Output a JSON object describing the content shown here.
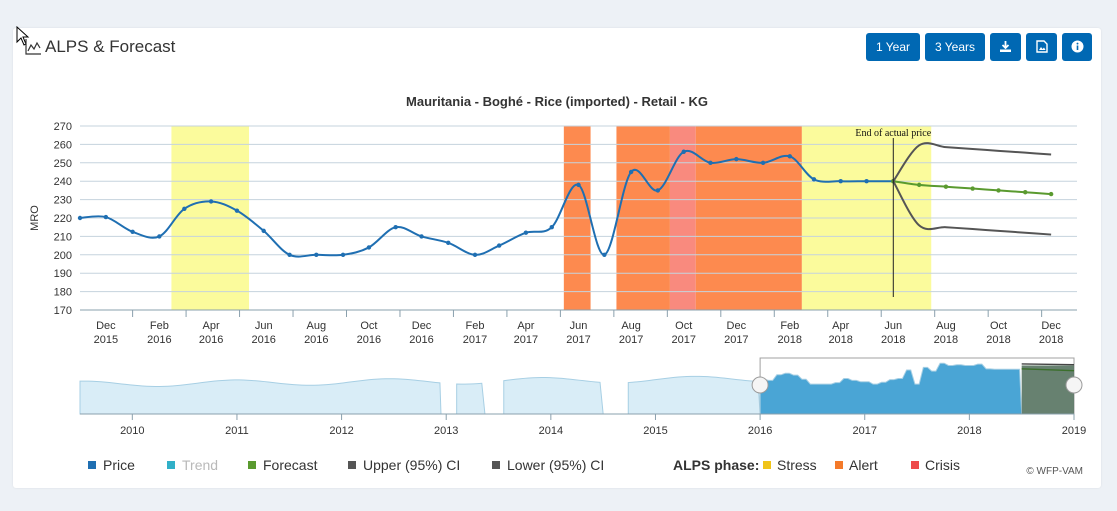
{
  "header": {
    "title": "ALPS & Forecast",
    "buttons": {
      "one_year": "1 Year",
      "three_years": "3 Years",
      "download_icon": "download-icon",
      "image_icon": "image-file-icon",
      "info_icon": "info-icon"
    }
  },
  "chart_data": {
    "type": "line",
    "title": "Mauritania - Boghé - Rice (imported) - Retail - KG",
    "ylabel": "MRO",
    "ylim": [
      170,
      270
    ],
    "yticks": [
      170,
      180,
      190,
      200,
      210,
      220,
      230,
      240,
      250,
      260,
      270
    ],
    "xlim": [
      "2015-11-01",
      "2018-12-31"
    ],
    "x_ticks": [
      {
        "month": "Dec",
        "year": "2015",
        "date": "2015-12-01"
      },
      {
        "month": "Feb",
        "year": "2016",
        "date": "2016-02-01"
      },
      {
        "month": "Apr",
        "year": "2016",
        "date": "2016-04-01"
      },
      {
        "month": "Jun",
        "year": "2016",
        "date": "2016-06-01"
      },
      {
        "month": "Aug",
        "year": "2016",
        "date": "2016-08-01"
      },
      {
        "month": "Oct",
        "year": "2016",
        "date": "2016-10-01"
      },
      {
        "month": "Dec",
        "year": "2016",
        "date": "2016-12-01"
      },
      {
        "month": "Feb",
        "year": "2017",
        "date": "2017-02-01"
      },
      {
        "month": "Apr",
        "year": "2017",
        "date": "2017-04-01"
      },
      {
        "month": "Jun",
        "year": "2017",
        "date": "2017-06-01"
      },
      {
        "month": "Aug",
        "year": "2017",
        "date": "2017-08-01"
      },
      {
        "month": "Oct",
        "year": "2017",
        "date": "2017-10-01"
      },
      {
        "month": "Dec",
        "year": "2017",
        "date": "2017-12-01"
      },
      {
        "month": "Feb",
        "year": "2018",
        "date": "2018-02-01"
      },
      {
        "month": "Apr",
        "year": "2018",
        "date": "2018-04-01"
      },
      {
        "month": "Jun",
        "year": "2018",
        "date": "2018-06-01"
      },
      {
        "month": "Aug",
        "year": "2018",
        "date": "2018-08-01"
      },
      {
        "month": "Oct",
        "year": "2018",
        "date": "2018-10-01"
      },
      {
        "month": "Dec",
        "year": "2018",
        "date": "2018-12-01"
      }
    ],
    "series": [
      {
        "name": "Price",
        "color": "#1f6fb2",
        "points": [
          [
            "2015-11-01",
            220
          ],
          [
            "2015-12-01",
            220.5
          ],
          [
            "2016-01-01",
            212.5
          ],
          [
            "2016-02-01",
            210
          ],
          [
            "2016-03-01",
            225
          ],
          [
            "2016-04-01",
            229
          ],
          [
            "2016-05-01",
            224
          ],
          [
            "2016-06-01",
            213
          ],
          [
            "2016-07-01",
            200
          ],
          [
            "2016-08-01",
            200
          ],
          [
            "2016-09-01",
            200
          ],
          [
            "2016-10-01",
            204
          ],
          [
            "2016-11-01",
            215
          ],
          [
            "2016-12-01",
            210
          ],
          [
            "2017-01-01",
            206.5
          ],
          [
            "2017-02-01",
            200
          ],
          [
            "2017-03-01",
            205
          ],
          [
            "2017-04-01",
            212
          ],
          [
            "2017-05-01",
            215
          ],
          [
            "2017-06-01",
            238
          ],
          [
            "2017-07-01",
            200
          ],
          [
            "2017-08-01",
            245
          ],
          [
            "2017-09-01",
            235
          ],
          [
            "2017-10-01",
            256
          ],
          [
            "2017-11-01",
            250
          ],
          [
            "2017-12-01",
            252
          ],
          [
            "2018-01-01",
            250
          ],
          [
            "2018-02-01",
            253.5
          ],
          [
            "2018-03-01",
            241
          ],
          [
            "2018-04-01",
            240
          ],
          [
            "2018-05-01",
            240
          ],
          [
            "2018-06-01",
            240
          ]
        ]
      },
      {
        "name": "Forecast",
        "color": "#5a9a2f",
        "points": [
          [
            "2018-06-01",
            240
          ],
          [
            "2018-07-01",
            238
          ],
          [
            "2018-08-01",
            237
          ],
          [
            "2018-09-01",
            236
          ],
          [
            "2018-10-01",
            235
          ],
          [
            "2018-11-01",
            234
          ],
          [
            "2018-12-01",
            233
          ]
        ]
      },
      {
        "name": "Upper (95%) CI",
        "color": "#555555",
        "points": [
          [
            "2018-06-01",
            240
          ],
          [
            "2018-07-01",
            259.5
          ],
          [
            "2018-08-01",
            258.5
          ],
          [
            "2018-09-01",
            257.5
          ],
          [
            "2018-10-01",
            256.5
          ],
          [
            "2018-11-01",
            255.5
          ],
          [
            "2018-12-01",
            254.5
          ]
        ]
      },
      {
        "name": "Lower (95%) CI",
        "color": "#555555",
        "points": [
          [
            "2018-06-01",
            240
          ],
          [
            "2018-07-01",
            216
          ],
          [
            "2018-08-01",
            215
          ],
          [
            "2018-09-01",
            214
          ],
          [
            "2018-10-01",
            213
          ],
          [
            "2018-11-01",
            212
          ],
          [
            "2018-12-01",
            211
          ]
        ]
      }
    ],
    "phases": [
      {
        "phase": "Stress",
        "start": "2016-02-15",
        "end": "2016-05-15",
        "color": "#fbfb9c"
      },
      {
        "phase": "Alert",
        "start": "2017-05-15",
        "end": "2017-06-15",
        "color": "#fd8a4f"
      },
      {
        "phase": "Alert",
        "start": "2017-07-15",
        "end": "2017-09-15",
        "color": "#fd8a4f"
      },
      {
        "phase": "Crisis",
        "start": "2017-09-15",
        "end": "2017-10-15",
        "color": "#f98a7e"
      },
      {
        "phase": "Alert",
        "start": "2017-10-15",
        "end": "2018-02-15",
        "color": "#fd8a4f"
      },
      {
        "phase": "Stress",
        "start": "2018-02-15",
        "end": "2018-07-15",
        "color": "#fbfb9c"
      }
    ],
    "annotation": {
      "text": "End of actual price",
      "date": "2018-06-01"
    },
    "navigator": {
      "ticks": [
        "2010",
        "2011",
        "2012",
        "2013",
        "2014",
        "2015",
        "2016",
        "2017",
        "2018",
        "2019"
      ],
      "range": [
        2009.5,
        2019
      ],
      "selection": [
        2016.0,
        2019.0
      ],
      "forecast_start": 2018.5
    },
    "legend": {
      "items": [
        {
          "label": "Price",
          "color": "#1f6fb2"
        },
        {
          "label": "Trend",
          "color": "#31b0c8"
        },
        {
          "label": "Forecast",
          "color": "#5a9a2f"
        },
        {
          "label": "Upper (95%) CI",
          "color": "#555555"
        },
        {
          "label": "Lower (95%) CI",
          "color": "#555555"
        }
      ],
      "phase_title": "ALPS phase:",
      "phase_items": [
        {
          "label": "Stress",
          "color": "#f0c419"
        },
        {
          "label": "Alert",
          "color": "#f47a2a"
        },
        {
          "label": "Crisis",
          "color": "#ee4a4a"
        }
      ]
    }
  },
  "footer": {
    "credit": "© WFP-VAM"
  }
}
